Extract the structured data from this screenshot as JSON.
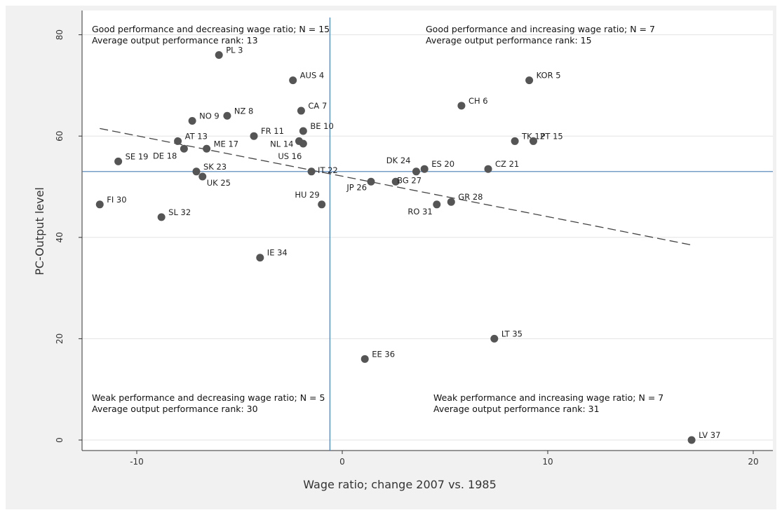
{
  "chart_data": {
    "type": "scatter",
    "title": "",
    "xlabel": "Wage ratio; change 2007 vs. 1985",
    "ylabel": "PC-Output level",
    "xlim": [
      -12.5,
      20.8
    ],
    "ylim": [
      -2,
      84
    ],
    "xticks": [
      -10,
      0,
      10,
      20
    ],
    "yticks": [
      0,
      20,
      40,
      60,
      80
    ],
    "grid": "horizontal",
    "reference_lines": {
      "x": -0.6,
      "y": 53
    },
    "fit_line": {
      "style": "dashed",
      "points": [
        [
          -11.8,
          61.5
        ],
        [
          17,
          38.5
        ]
      ]
    },
    "points": [
      {
        "label": "PL 3",
        "x": -6.0,
        "y": 76
      },
      {
        "label": "AUS 4",
        "x": -2.4,
        "y": 71
      },
      {
        "label": "KOR 5",
        "x": 9.1,
        "y": 71
      },
      {
        "label": "CH 6",
        "x": 5.8,
        "y": 66
      },
      {
        "label": "CA 7",
        "x": -2.0,
        "y": 65
      },
      {
        "label": "NZ 8",
        "x": -5.6,
        "y": 64
      },
      {
        "label": "NO 9",
        "x": -7.3,
        "y": 63
      },
      {
        "label": "BE 10",
        "x": -1.9,
        "y": 61
      },
      {
        "label": "FR 11",
        "x": -4.3,
        "y": 60
      },
      {
        "label": "TK 12",
        "x": 8.4,
        "y": 59
      },
      {
        "label": "AT 13",
        "x": -8.0,
        "y": 59
      },
      {
        "label": "NL 14",
        "x": -2.1,
        "y": 59
      },
      {
        "label": "PT 15",
        "x": 9.3,
        "y": 59
      },
      {
        "label": "US 16",
        "x": -1.9,
        "y": 58.5
      },
      {
        "label": "ME 17",
        "x": -6.6,
        "y": 57.5
      },
      {
        "label": "DE 18",
        "x": -7.7,
        "y": 57.5
      },
      {
        "label": "SE 19",
        "x": -10.9,
        "y": 55
      },
      {
        "label": "ES 20",
        "x": 4.0,
        "y": 53.5
      },
      {
        "label": "CZ 21",
        "x": 7.1,
        "y": 53.5
      },
      {
        "label": "IT 22",
        "x": -1.5,
        "y": 53
      },
      {
        "label": "SK 23",
        "x": -7.1,
        "y": 53
      },
      {
        "label": "DK 24",
        "x": 3.6,
        "y": 53
      },
      {
        "label": "UK 25",
        "x": -6.8,
        "y": 52
      },
      {
        "label": "JP 26",
        "x": 1.4,
        "y": 51
      },
      {
        "label": "BG 27",
        "x": 2.6,
        "y": 51
      },
      {
        "label": "GR 28",
        "x": 5.3,
        "y": 47
      },
      {
        "label": "HU 29",
        "x": -1.0,
        "y": 46.5
      },
      {
        "label": "FI 30",
        "x": -11.8,
        "y": 46.5
      },
      {
        "label": "RO 31",
        "x": 4.6,
        "y": 46.5
      },
      {
        "label": "SL 32",
        "x": -8.8,
        "y": 44
      },
      {
        "label": "IE 34",
        "x": -4.0,
        "y": 36
      },
      {
        "label": "LT 35",
        "x": 7.4,
        "y": 20
      },
      {
        "label": "EE 36",
        "x": 1.1,
        "y": 16
      },
      {
        "label": "LV 37",
        "x": 17.0,
        "y": 0
      }
    ]
  },
  "annotations": {
    "top_left": {
      "line1": "Good performance and decreasing wage ratio; N = 15",
      "line2": "Average output performance rank: 13"
    },
    "top_right": {
      "line1": "Good performance and increasing wage ratio; N = 7",
      "line2": "Average output performance rank: 15"
    },
    "bottom_left": {
      "line1": "Weak performance and decreasing wage ratio; N = 5",
      "line2": "Average output performance rank: 30"
    },
    "bottom_right": {
      "line1": "Weak performance and increasing wage ratio; N = 7",
      "line2": "Average output performance rank: 31"
    }
  },
  "colors": {
    "frame_background": "#f1f1f1",
    "plot_background": "#ffffff",
    "grid": "#e3e3e3",
    "reference_line": "#4a7fb5",
    "marker": "#555555",
    "fit_line": "#444444"
  }
}
